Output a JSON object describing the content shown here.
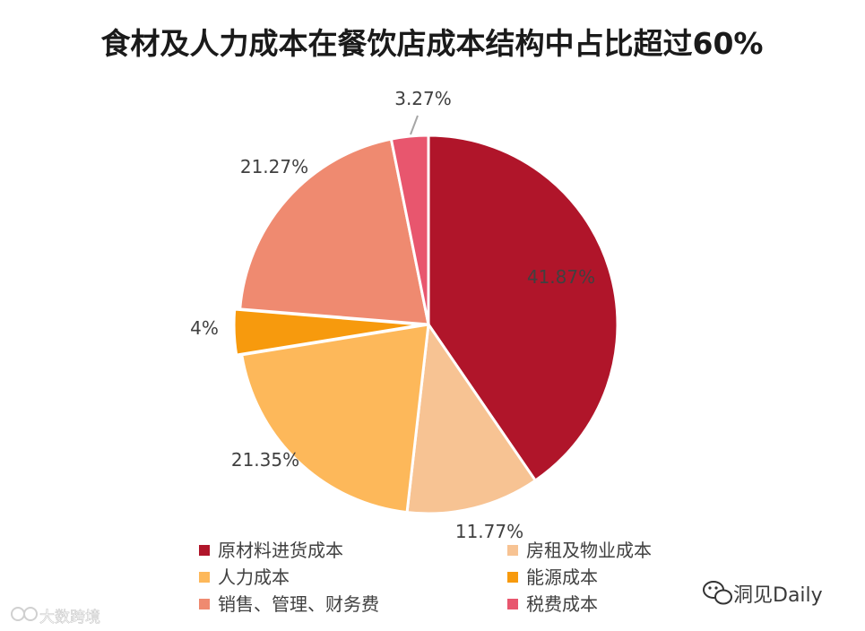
{
  "chart_data": {
    "type": "pie",
    "title": "食材及人力成本在餐饮店成本结构中占比超过60%",
    "slices": [
      {
        "name": "原材料进货成本",
        "value": 41.87,
        "label": "41.87%",
        "color": "#B0152A"
      },
      {
        "name": "房租及物业成本",
        "value": 11.77,
        "label": "11.77%",
        "color": "#F7C393"
      },
      {
        "name": "人力成本",
        "value": 21.35,
        "label": "21.35%",
        "color": "#FDB85A"
      },
      {
        "name": "能源成本",
        "value": 4,
        "label": "4%",
        "color": "#F79A0D"
      },
      {
        "name": "销售、管理、财务费",
        "value": 21.27,
        "label": "21.27%",
        "color": "#EF8A70"
      },
      {
        "name": "税费成本",
        "value": 3.27,
        "label": "3.27%",
        "color": "#E8566E"
      }
    ],
    "legend_position": "bottom",
    "start_angle": "12 o'clock",
    "direction": "clockwise"
  },
  "watermarks": {
    "right": "洞见Daily",
    "left": "大数跨境"
  }
}
